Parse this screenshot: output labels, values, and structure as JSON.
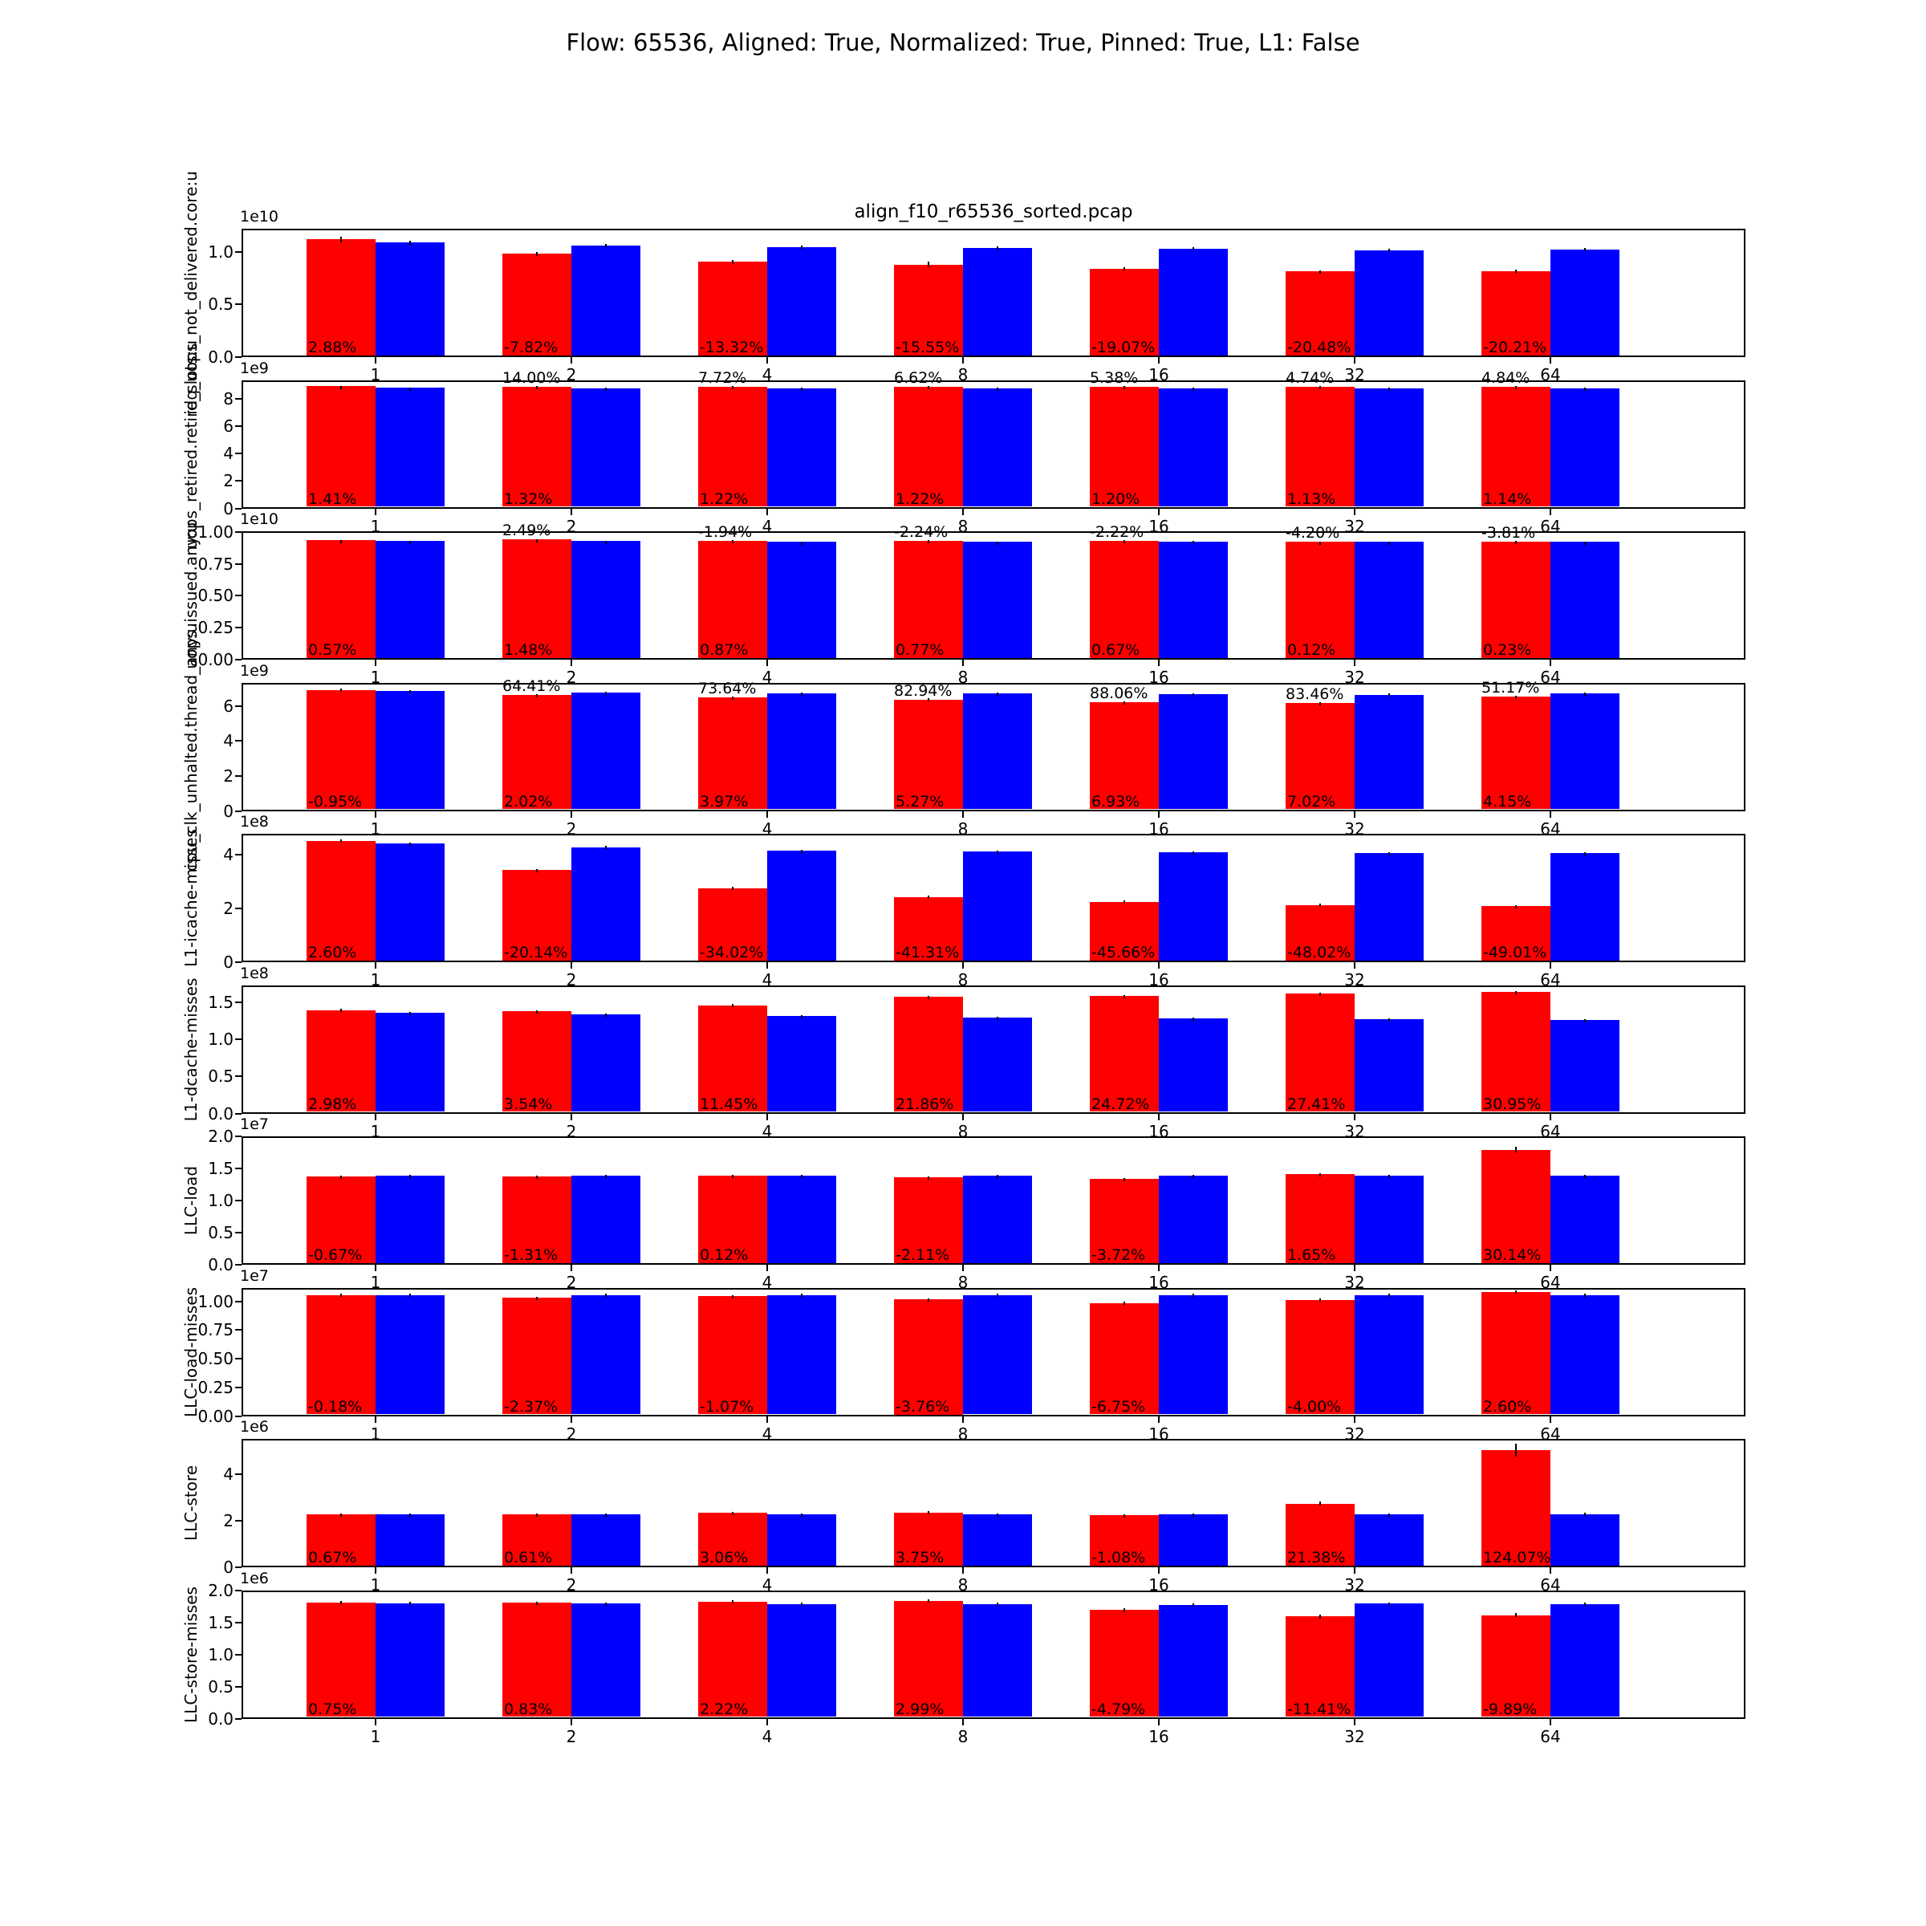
{
  "figure_title": "Flow: 65536, Aligned: True, Normalized: True, Pinned: True, L1: False",
  "axes_title": "align_f10_r65536_sorted.pcap",
  "colors": {
    "series_red": "#ff0000",
    "series_blue": "#0000ff",
    "axis": "#000000"
  },
  "chart_data": {
    "type": "bar",
    "title": "Flow: 65536, Aligned: True, Normalized: True, Pinned: True, L1: False",
    "axes_title": "align_f10_r65536_sorted.pcap",
    "categories": [
      "1",
      "2",
      "4",
      "8",
      "16",
      "32",
      "64"
    ],
    "legend": "none",
    "grid": false,
    "layout": "10 vertically stacked subplots, paired red/blue bars with error bars and percent annotations",
    "subplots": [
      {
        "ylabel": "idq_uops_not_delivered.core:u",
        "exponent": "1e10",
        "ymax": 1.22,
        "yticks": {
          "labels": [
            "0.0",
            "0.5",
            "1.0"
          ],
          "values": [
            0,
            0.5,
            1.0
          ]
        },
        "series": {
          "red": [
            1.116,
            0.977,
            0.901,
            0.874,
            0.834,
            0.807,
            0.814
          ],
          "blue": [
            1.085,
            1.06,
            1.04,
            1.035,
            1.03,
            1.015,
            1.02
          ]
        },
        "errors": {
          "red": [
            0.03,
            0.022,
            0.018,
            0.028,
            0.016,
            0.012,
            0.016
          ],
          "blue": [
            0.018,
            0.014,
            0.014,
            0.012,
            0.014,
            0.012,
            0.012
          ]
        },
        "pct_bottom": [
          "2.88%",
          "-7.82%",
          "-13.32%",
          "-15.55%",
          "-19.07%",
          "-20.48%",
          "-20.21%"
        ],
        "pct_top": null
      },
      {
        "ylabel": "uops_retired.retire_slots:u",
        "exponent": "1e9",
        "ymax": 9.35,
        "yticks": {
          "labels": [
            "0",
            "2",
            "4",
            "6",
            "8"
          ],
          "values": [
            0,
            2,
            4,
            6,
            8
          ]
        },
        "series": {
          "red": [
            8.88,
            8.87,
            8.86,
            8.85,
            8.85,
            8.84,
            8.84
          ],
          "blue": [
            8.76,
            8.75,
            8.75,
            8.74,
            8.74,
            8.74,
            8.74
          ]
        },
        "errors": {
          "red": [
            0.05,
            0.05,
            0.05,
            0.05,
            0.05,
            0.05,
            0.05
          ],
          "blue": [
            0.05,
            0.05,
            0.05,
            0.05,
            0.05,
            0.05,
            0.05
          ]
        },
        "pct_bottom": [
          "1.41%",
          "1.32%",
          "1.22%",
          "1.22%",
          "1.20%",
          "1.13%",
          "1.14%"
        ],
        "pct_top": [
          null,
          "14.00%",
          "7.72%",
          "6.62%",
          "5.38%",
          "4.74%",
          "4.84%"
        ]
      },
      {
        "ylabel": "uops_issued.any:u",
        "exponent": "1e10",
        "ymax": 1.005,
        "yticks": {
          "labels": [
            "0.00",
            "0.25",
            "0.50",
            "0.75",
            "1.00"
          ],
          "values": [
            0,
            0.25,
            0.5,
            0.75,
            1.0
          ]
        },
        "series": {
          "red": [
            0.932,
            0.94,
            0.928,
            0.928,
            0.929,
            0.921,
            0.922
          ],
          "blue": [
            0.927,
            0.926,
            0.92,
            0.921,
            0.923,
            0.92,
            0.92
          ]
        },
        "errors": {
          "red": [
            0.004,
            0.004,
            0.004,
            0.004,
            0.004,
            0.004,
            0.004
          ],
          "blue": [
            0.004,
            0.004,
            0.004,
            0.004,
            0.004,
            0.004,
            0.004
          ]
        },
        "pct_bottom": [
          "0.57%",
          "1.48%",
          "0.87%",
          "0.77%",
          "0.67%",
          "0.12%",
          "0.23%"
        ],
        "pct_top": [
          null,
          "2.49%",
          "-1.94%",
          "-2.24%",
          "-2.22%",
          "-4.20%",
          "-3.81%"
        ]
      },
      {
        "ylabel": "cpu_clk_unhalted.thread_any:u",
        "exponent": "1e9",
        "ymax": 7.35,
        "yticks": {
          "labels": [
            "0",
            "2",
            "4",
            "6"
          ],
          "values": [
            0,
            2,
            4,
            6
          ]
        },
        "series": {
          "red": [
            6.93,
            6.62,
            6.47,
            6.37,
            6.22,
            6.18,
            6.55
          ],
          "blue": [
            6.88,
            6.77,
            6.72,
            6.71,
            6.67,
            6.65,
            6.72
          ]
        },
        "errors": {
          "red": [
            0.07,
            0.05,
            0.05,
            0.05,
            0.05,
            0.05,
            0.05
          ],
          "blue": [
            0.05,
            0.05,
            0.05,
            0.05,
            0.05,
            0.05,
            0.05
          ]
        },
        "pct_bottom": [
          "-0.95%",
          "2.02%",
          "3.97%",
          "5.27%",
          "6.93%",
          "7.02%",
          "4.15%"
        ],
        "pct_top": [
          null,
          "64.41%",
          "73.64%",
          "82.94%",
          "88.06%",
          "83.46%",
          "51.17%"
        ]
      },
      {
        "ylabel": "L1-icache-misses",
        "exponent": "1e8",
        "ymax": 4.78,
        "yticks": {
          "labels": [
            "0",
            "2",
            "4"
          ],
          "values": [
            0,
            2,
            4
          ]
        },
        "series": {
          "red": [
            4.52,
            3.42,
            2.72,
            2.38,
            2.22,
            2.1,
            2.06
          ],
          "blue": [
            4.41,
            4.28,
            4.13,
            4.1,
            4.07,
            4.05,
            4.04
          ]
        },
        "errors": {
          "red": [
            0.06,
            0.03,
            0.05,
            0.06,
            0.04,
            0.04,
            0.03
          ],
          "blue": [
            0.05,
            0.04,
            0.05,
            0.04,
            0.05,
            0.04,
            0.04
          ]
        },
        "pct_bottom": [
          "2.60%",
          "-20.14%",
          "-34.02%",
          "-41.31%",
          "-45.66%",
          "-48.02%",
          "-49.01%"
        ],
        "pct_top": null
      },
      {
        "ylabel": "L1-dcache-misses",
        "exponent": "1e8",
        "ymax": 1.73,
        "yticks": {
          "labels": [
            "0.0",
            "0.5",
            "1.0",
            "1.5"
          ],
          "values": [
            0,
            0.5,
            1.0,
            1.5
          ]
        },
        "series": {
          "red": [
            1.39,
            1.37,
            1.455,
            1.57,
            1.585,
            1.61,
            1.64
          ],
          "blue": [
            1.35,
            1.325,
            1.305,
            1.29,
            1.272,
            1.264,
            1.252
          ]
        },
        "errors": {
          "red": [
            0.015,
            0.012,
            0.015,
            0.012,
            0.012,
            0.012,
            0.012
          ],
          "blue": [
            0.015,
            0.012,
            0.012,
            0.012,
            0.012,
            0.012,
            0.012
          ]
        },
        "pct_bottom": [
          "2.98%",
          "3.54%",
          "11.45%",
          "21.86%",
          "24.72%",
          "27.41%",
          "30.95%"
        ],
        "pct_top": null
      },
      {
        "ylabel": "LLC-load",
        "exponent": "1e7",
        "ymax": 2.0,
        "yticks": {
          "labels": [
            "0.0",
            "0.5",
            "1.0",
            "1.5",
            "2.0"
          ],
          "values": [
            0,
            0.5,
            1.0,
            1.5,
            2.0
          ]
        },
        "series": {
          "red": [
            1.371,
            1.362,
            1.382,
            1.351,
            1.324,
            1.403,
            1.789
          ],
          "blue": [
            1.38,
            1.38,
            1.38,
            1.38,
            1.375,
            1.38,
            1.376
          ]
        },
        "errors": {
          "red": [
            0.015,
            0.015,
            0.015,
            0.012,
            0.02,
            0.015,
            0.045
          ],
          "blue": [
            0.012,
            0.012,
            0.012,
            0.012,
            0.012,
            0.012,
            0.012
          ]
        },
        "pct_bottom": [
          "-0.67%",
          "-1.31%",
          "0.12%",
          "-2.11%",
          "-3.72%",
          "1.65%",
          "30.14%"
        ],
        "pct_top": null
      },
      {
        "ylabel": "LLC-load-misses",
        "exponent": "1e7",
        "ymax": 1.12,
        "yticks": {
          "labels": [
            "0.00",
            "0.25",
            "0.50",
            "0.75",
            "1.00"
          ],
          "values": [
            0,
            0.25,
            0.5,
            0.75,
            1.0
          ]
        },
        "series": {
          "red": [
            1.053,
            1.03,
            1.044,
            1.015,
            0.984,
            1.013,
            1.082
          ],
          "blue": [
            1.055,
            1.055,
            1.055,
            1.055,
            1.055,
            1.055,
            1.055
          ]
        },
        "errors": {
          "red": [
            0.015,
            0.012,
            0.012,
            0.012,
            0.015,
            0.012,
            0.015
          ],
          "blue": [
            0.01,
            0.01,
            0.01,
            0.01,
            0.01,
            0.01,
            0.01
          ]
        },
        "pct_bottom": [
          "-0.18%",
          "-2.37%",
          "-1.07%",
          "-3.76%",
          "-6.75%",
          "-4.00%",
          "2.60%"
        ],
        "pct_top": null
      },
      {
        "ylabel": "LLC-store",
        "exponent": "1e6",
        "ymax": 5.5,
        "yticks": {
          "labels": [
            "0",
            "2",
            "4"
          ],
          "values": [
            0,
            2,
            4
          ]
        },
        "series": {
          "red": [
            2.235,
            2.234,
            2.298,
            2.303,
            2.196,
            2.695,
            5.02
          ],
          "blue": [
            2.22,
            2.221,
            2.23,
            2.22,
            2.22,
            2.22,
            2.24
          ]
        },
        "errors": {
          "red": [
            0.04,
            0.04,
            0.04,
            0.05,
            0.04,
            0.09,
            0.28
          ],
          "blue": [
            0.04,
            0.04,
            0.04,
            0.04,
            0.04,
            0.04,
            0.05
          ]
        },
        "pct_bottom": [
          "0.67%",
          "0.61%",
          "3.06%",
          "3.75%",
          "-1.08%",
          "21.38%",
          "124.07%"
        ],
        "pct_top": null
      },
      {
        "ylabel": "LLC-store-misses",
        "exponent": "1e6",
        "ymax": 2.0,
        "yticks": {
          "labels": [
            "0.0",
            "0.5",
            "1.0",
            "1.5",
            "2.0"
          ],
          "values": [
            0,
            0.5,
            1.0,
            1.5,
            2.0
          ]
        },
        "series": {
          "red": [
            1.803,
            1.8,
            1.82,
            1.833,
            1.685,
            1.586,
            1.604
          ],
          "blue": [
            1.79,
            1.785,
            1.78,
            1.78,
            1.77,
            1.79,
            1.78
          ]
        },
        "errors": {
          "red": [
            0.025,
            0.02,
            0.02,
            0.02,
            0.03,
            0.03,
            0.03
          ],
          "blue": [
            0.025,
            0.02,
            0.025,
            0.02,
            0.02,
            0.02,
            0.02
          ]
        },
        "pct_bottom": [
          "0.75%",
          "0.83%",
          "2.22%",
          "2.99%",
          "-4.79%",
          "-11.41%",
          "-9.89%"
        ],
        "pct_top": null
      }
    ]
  }
}
